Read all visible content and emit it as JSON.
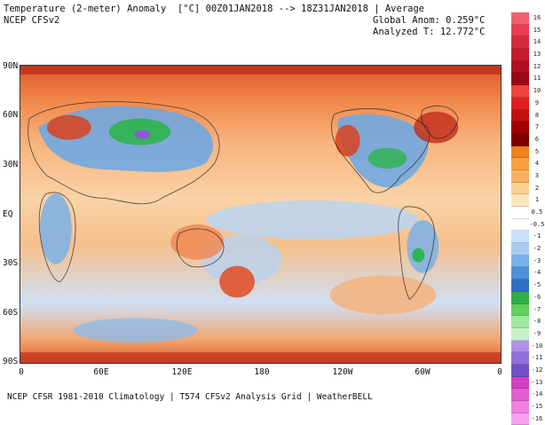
{
  "header": {
    "title": "Temperature (2-meter) Anomaly  [°C] 00Z01JAN2018 --> 18Z31JAN2018 | Average",
    "model": "NCEP CFSv2",
    "global_anom": "Global Anom: 0.259°C",
    "analyzed_t": "Analyzed T: 12.772°C"
  },
  "map": {
    "lat_labels": [
      "90N",
      "60N",
      "30N",
      "EQ",
      "30S",
      "60S",
      "90S"
    ],
    "lon_labels": [
      "0",
      "60E",
      "120E",
      "180",
      "120W",
      "60W",
      "0"
    ],
    "colors": {
      "ocean_warm": "#f6c48d",
      "ocean_cool": "#a9ccef",
      "arctic_warm": "#d8421f",
      "land_cold": "#6aa7e6",
      "land_very_cold": "#2fb44e",
      "land_extreme": "#8b5ad8"
    }
  },
  "colorbar": {
    "labels": [
      "16",
      "15",
      "14",
      "13",
      "12",
      "11",
      "10",
      "9",
      "8",
      "7",
      "6",
      "5",
      "4",
      "3",
      "2",
      "1",
      "0.5",
      "-0.5",
      "-1",
      "-2",
      "-3",
      "-4",
      "-5",
      "-6",
      "-7",
      "-8",
      "-9",
      "-10",
      "-11",
      "-12",
      "-13",
      "-14",
      "-15",
      "-16"
    ],
    "colors": [
      "#f06070",
      "#e83e50",
      "#d42a40",
      "#c41c30",
      "#b01020",
      "#9a0818",
      "#f04040",
      "#e02020",
      "#c01010",
      "#a00000",
      "#800000",
      "#f08020",
      "#f8a040",
      "#f8b060",
      "#fcd090",
      "#fde6bf",
      "#ffffff",
      "#ffffff",
      "#c8e0f8",
      "#a8ccf0",
      "#7ab0e8",
      "#5090d8",
      "#3070c0",
      "#30b040",
      "#60d060",
      "#a0e8a0",
      "#c8f0c8",
      "#b090e8",
      "#9070d8",
      "#7050c8",
      "#d040c0",
      "#e060d0",
      "#f080e0",
      "#f8a0f0"
    ]
  },
  "footer": {
    "text": "NCEP CFSR 1981-2010 Climatology | T574 CFSv2 Analysis Grid | WeatherBELL"
  }
}
